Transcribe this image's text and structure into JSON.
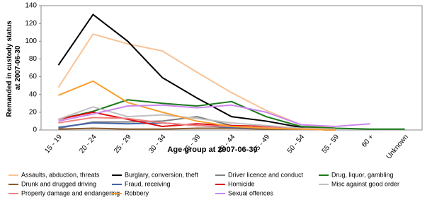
{
  "chart_data": {
    "type": "line",
    "ylabel": [
      "Remanded in custody status",
      "at 2007-06-30"
    ],
    "xlabel": "Age group at 2007-06-30",
    "categories": [
      "15 - 19",
      "20 - 24",
      "25 - 29",
      "30 - 34",
      "35 - 39",
      "40 - 44",
      "45 - 49",
      "50 - 54",
      "55 - 59",
      "60 +",
      "Unknown"
    ],
    "ylim": [
      0,
      140
    ],
    "yticks": [
      0,
      20,
      40,
      60,
      80,
      100,
      120,
      140
    ],
    "series": [
      {
        "name": "Assaults, abduction, threats",
        "color": "#f9c396",
        "values": [
          48,
          108,
          97,
          89,
          65,
          42,
          22,
          6,
          2,
          null,
          null
        ]
      },
      {
        "name": "Burglary, conversion, theft",
        "color": "#000000",
        "values": [
          73,
          130,
          100,
          59,
          36,
          15,
          10,
          3,
          2,
          null,
          null
        ]
      },
      {
        "name": "Driver licence and conduct",
        "color": "#808080",
        "values": [
          2,
          9,
          9,
          10,
          15,
          5,
          4,
          2,
          1,
          null,
          null
        ]
      },
      {
        "name": "Drug, liquor, gambling",
        "color": "#1a7a1a",
        "values": [
          12,
          21,
          34,
          30,
          27,
          32,
          15,
          4,
          2,
          1,
          1
        ]
      },
      {
        "name": "Drunk and drugged driving",
        "color": "#8b5a2b",
        "values": [
          1,
          2,
          1,
          1,
          2,
          2,
          1,
          1,
          0,
          null,
          null
        ]
      },
      {
        "name": "Fraud, receiving",
        "color": "#4466aa",
        "values": [
          3,
          8,
          7,
          8,
          5,
          3,
          2,
          1,
          0,
          null,
          null
        ]
      },
      {
        "name": "Homicide",
        "color": "#dd1111",
        "values": [
          12,
          20,
          12,
          4,
          7,
          5,
          4,
          1,
          0,
          null,
          null
        ]
      },
      {
        "name": "Misc against good order",
        "color": "#c0c0c0",
        "values": [
          12,
          26,
          15,
          17,
          13,
          8,
          5,
          2,
          1,
          null,
          null
        ]
      },
      {
        "name": "Property damage and endangering",
        "color": "#f08080",
        "values": [
          8,
          14,
          13,
          8,
          5,
          4,
          3,
          1,
          0,
          null,
          null
        ]
      },
      {
        "name": "Robbery",
        "color": "#f7a030",
        "values": [
          39,
          55,
          31,
          20,
          10,
          4,
          2,
          1,
          0,
          null,
          null
        ]
      },
      {
        "name": "Sexual offences",
        "color": "#cc88ee",
        "values": [
          10,
          18,
          27,
          28,
          25,
          28,
          20,
          6,
          4,
          7,
          null
        ]
      }
    ]
  }
}
